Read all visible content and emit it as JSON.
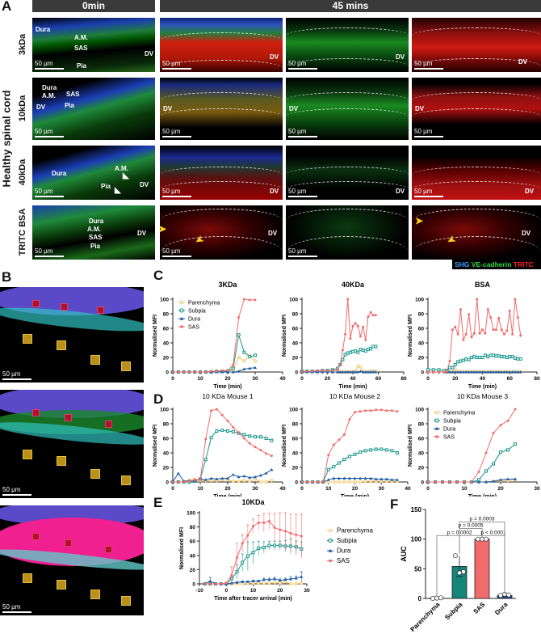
{
  "panel_labels": {
    "a": "A",
    "b": "B",
    "c": "C",
    "d": "D",
    "e": "E",
    "f": "F"
  },
  "panel_a": {
    "headers": {
      "t0": "0min",
      "t45": "45 mins"
    },
    "side_label": "Healthy spinal cord",
    "rows": [
      "3kDa",
      "10kDa",
      "40kDa",
      "TRITC BSA"
    ],
    "scale_bar": "50 µm",
    "anat": {
      "dura": "Dura",
      "am": "A.M.",
      "sas": "SAS",
      "pia": "Pia",
      "dv": "DV"
    },
    "legend": {
      "shg": "SHG",
      "ve": "VE-cadherin",
      "tritc": "TRITC"
    },
    "legend_colors": {
      "shg": "#3aa0ff",
      "ve": "#33dd44",
      "tritc": "#ff2020"
    }
  },
  "panel_b": {
    "scale_bar": "50 µm"
  },
  "series_colors": {
    "Parenchyma": "#f5c66a",
    "Subpia": "#15968a",
    "Dura": "#1d5aa6",
    "SAS": "#f26b6b"
  },
  "chart_data": [
    {
      "id": "c1",
      "type": "line",
      "title": "3KDa",
      "xlabel": "Time (min)",
      "ylabel": "Normalised MFI",
      "xlim": [
        0,
        40
      ],
      "ylim": [
        0,
        100
      ],
      "xticks": [
        0,
        10,
        20,
        30,
        40
      ],
      "yticks": [
        0,
        20,
        40,
        60,
        80,
        100
      ],
      "legend": "top-left",
      "x": [
        0,
        2,
        4,
        6,
        8,
        10,
        12,
        14,
        16,
        18,
        20,
        22,
        24,
        26,
        28,
        30
      ],
      "series": [
        {
          "name": "Parenchyma",
          "values": [
            0,
            0,
            0,
            0,
            0,
            0,
            0,
            1,
            1,
            1,
            2,
            2,
            20,
            15,
            23,
            15
          ]
        },
        {
          "name": "Subpia",
          "values": [
            0,
            0,
            0,
            0,
            0,
            0,
            0,
            0,
            1,
            1,
            1,
            5,
            51,
            27,
            21,
            23
          ]
        },
        {
          "name": "Dura",
          "values": [
            0,
            0,
            0,
            0,
            0,
            0,
            0,
            0,
            0,
            0,
            0,
            0,
            1,
            4,
            5,
            6
          ]
        },
        {
          "name": "SAS",
          "values": [
            0,
            0,
            0,
            0,
            0,
            0,
            0,
            1,
            1,
            2,
            2,
            10,
            75,
            100,
            99,
            99
          ]
        }
      ]
    },
    {
      "id": "c2",
      "type": "line",
      "title": "40KDa",
      "xlabel": "Time (min)",
      "ylabel": "Normalised MFI",
      "xlim": [
        0,
        80
      ],
      "ylim": [
        0,
        100
      ],
      "xticks": [
        0,
        20,
        40,
        60,
        80
      ],
      "yticks": [
        0,
        20,
        40,
        60,
        80,
        100
      ],
      "x": [
        0,
        4,
        8,
        12,
        16,
        20,
        24,
        28,
        30,
        32,
        34,
        36,
        38,
        40,
        42,
        44,
        46,
        48,
        50,
        52,
        54,
        56,
        58
      ],
      "series": [
        {
          "name": "Parenchyma",
          "values": [
            0,
            0,
            0,
            0,
            0,
            0,
            0,
            0,
            0,
            0,
            0,
            0,
            0,
            0,
            1,
            8,
            7,
            1,
            0,
            0,
            1,
            1,
            1
          ]
        },
        {
          "name": "Subpia",
          "values": [
            1,
            1,
            1,
            1,
            2,
            2,
            3,
            5,
            10,
            17,
            24,
            26,
            27,
            28,
            29,
            27,
            31,
            30,
            29,
            31,
            32,
            35,
            35
          ]
        },
        {
          "name": "Dura",
          "values": [
            0,
            0,
            0,
            0,
            0,
            0,
            0,
            0,
            0,
            0,
            0,
            0,
            0,
            0,
            0,
            0,
            1,
            0,
            0,
            0,
            0,
            0,
            0
          ]
        },
        {
          "name": "SAS",
          "values": [
            1,
            1,
            1,
            2,
            2,
            2,
            2,
            3,
            10,
            30,
            52,
            100,
            46,
            63,
            67,
            63,
            49,
            62,
            44,
            76,
            82,
            78,
            78
          ]
        }
      ]
    },
    {
      "id": "c3",
      "type": "line",
      "title": "BSA",
      "xlabel": "Time (min)",
      "ylabel": "Normalised MFI",
      "xlim": [
        0,
        80
      ],
      "ylim": [
        0,
        100
      ],
      "xticks": [
        0,
        20,
        40,
        60,
        80
      ],
      "yticks": [
        0,
        20,
        40,
        60,
        80,
        100
      ],
      "x": [
        0,
        4,
        8,
        12,
        14,
        16,
        18,
        20,
        22,
        24,
        26,
        28,
        30,
        32,
        34,
        36,
        38,
        40,
        42,
        44,
        46,
        48,
        50,
        52,
        54,
        56,
        58,
        60,
        62,
        64,
        66,
        68
      ],
      "series": [
        {
          "name": "Parenchyma",
          "values": [
            0,
            0,
            0,
            0,
            0,
            0,
            0,
            4,
            0,
            0,
            0,
            0,
            0,
            0,
            0,
            0,
            0,
            0,
            0,
            0,
            0,
            0,
            0,
            0,
            0,
            0,
            0,
            0,
            0,
            0,
            0,
            0
          ]
        },
        {
          "name": "Subpia",
          "values": [
            3,
            3,
            3,
            2,
            2,
            6,
            6,
            10,
            14,
            15,
            16,
            18,
            17,
            20,
            21,
            20,
            20,
            20,
            23,
            21,
            23,
            23,
            22,
            22,
            21,
            21,
            20,
            21,
            21,
            19,
            18,
            18
          ]
        },
        {
          "name": "Dura",
          "values": [
            0,
            0,
            0,
            0,
            0,
            0,
            0,
            0,
            0,
            0,
            0,
            0,
            0,
            0,
            0,
            0,
            0,
            0,
            0,
            0,
            0,
            0,
            0,
            0,
            0,
            0,
            0,
            0,
            0,
            0,
            0,
            0
          ]
        },
        {
          "name": "SAS",
          "values": [
            0,
            0,
            0,
            0,
            1,
            15,
            58,
            62,
            52,
            86,
            44,
            52,
            79,
            48,
            53,
            100,
            53,
            58,
            53,
            86,
            75,
            58,
            58,
            74,
            58,
            52,
            57,
            84,
            52,
            100,
            75,
            50
          ]
        }
      ]
    },
    {
      "id": "d1",
      "type": "line",
      "title": "10 KDa Mouse 1",
      "xlabel": "Time (min)",
      "ylabel": "Normalised MFI",
      "xlim": [
        0,
        40
      ],
      "ylim": [
        0,
        100
      ],
      "xticks": [
        0,
        10,
        20,
        30,
        40
      ],
      "yticks": [
        0,
        20,
        40,
        60,
        80,
        100
      ],
      "x": [
        0,
        2,
        4,
        6,
        8,
        10,
        12,
        14,
        16,
        18,
        20,
        22,
        24,
        26,
        28,
        30,
        32,
        34,
        36
      ],
      "series": [
        {
          "name": "Parenchyma",
          "values": [
            0,
            0,
            0,
            2,
            4,
            2,
            2,
            2,
            2,
            3,
            3,
            1,
            1,
            2,
            1,
            4,
            0,
            0,
            2
          ]
        },
        {
          "name": "Subpia",
          "values": [
            0,
            0,
            0,
            0,
            1,
            4,
            31,
            61,
            70,
            71,
            70,
            69,
            67,
            65,
            63,
            62,
            62,
            60,
            57
          ]
        },
        {
          "name": "Dura",
          "values": [
            0,
            12,
            1,
            2,
            2,
            4,
            3,
            5,
            4,
            5,
            5,
            10,
            7,
            8,
            6,
            7,
            9,
            12,
            17
          ]
        },
        {
          "name": "SAS",
          "values": [
            0,
            0,
            0,
            1,
            3,
            3,
            59,
            98,
            100,
            92,
            84,
            75,
            68,
            60,
            53,
            48,
            44,
            39,
            36
          ]
        }
      ]
    },
    {
      "id": "d2",
      "type": "line",
      "title": "10 KDa Mouse 2",
      "xlabel": "Time (min)",
      "ylabel": "Normalised MFI",
      "xlim": [
        0,
        40
      ],
      "ylim": [
        0,
        100
      ],
      "xticks": [
        0,
        10,
        20,
        30,
        40
      ],
      "yticks": [
        0,
        20,
        40,
        60,
        80,
        100
      ],
      "x": [
        0,
        2,
        4,
        6,
        8,
        10,
        12,
        14,
        16,
        18,
        20,
        22,
        24,
        26,
        28,
        30,
        32,
        34,
        36
      ],
      "series": [
        {
          "name": "Parenchyma",
          "values": [
            0,
            0,
            0,
            0,
            0,
            0,
            0,
            0,
            0,
            0,
            0,
            0,
            1,
            1,
            1,
            1,
            1,
            1,
            1
          ]
        },
        {
          "name": "Subpia",
          "values": [
            0,
            0,
            0,
            0,
            0,
            17,
            21,
            26,
            31,
            35,
            38,
            41,
            43,
            44,
            45,
            45,
            44,
            43,
            40
          ]
        },
        {
          "name": "Dura",
          "values": [
            0,
            0,
            0,
            0,
            0,
            3,
            5,
            5,
            5,
            5,
            5,
            5,
            5,
            5,
            4,
            4,
            4,
            3,
            3
          ]
        },
        {
          "name": "SAS",
          "values": [
            0,
            0,
            0,
            0,
            0,
            37,
            51,
            58,
            65,
            86,
            96,
            97,
            98,
            98,
            99,
            99,
            98,
            98,
            97
          ]
        }
      ]
    },
    {
      "id": "d3",
      "type": "line",
      "title": "10 KDa Mouse 3",
      "xlabel": "Time (min)",
      "ylabel": "Normalised MFI",
      "xlim": [
        0,
        30
      ],
      "ylim": [
        0,
        100
      ],
      "xticks": [
        0,
        10,
        20,
        30
      ],
      "yticks": [
        0,
        20,
        40,
        60,
        80,
        100
      ],
      "legend": "top-left",
      "x": [
        0,
        2,
        4,
        6,
        8,
        10,
        12,
        14,
        16,
        18,
        20,
        22,
        24
      ],
      "series": [
        {
          "name": "Parenchyma",
          "values": [
            0,
            0,
            0,
            0,
            0,
            0,
            0,
            0,
            0,
            1,
            2,
            2,
            3
          ]
        },
        {
          "name": "Subpia",
          "values": [
            0,
            0,
            0,
            0,
            0,
            0,
            0,
            3,
            15,
            25,
            41,
            44,
            52
          ]
        },
        {
          "name": "Dura",
          "values": [
            0,
            0,
            0,
            0,
            0,
            0,
            0,
            0,
            0,
            1,
            3,
            4,
            4
          ]
        },
        {
          "name": "SAS",
          "values": [
            0,
            0,
            0,
            0,
            0,
            0,
            0,
            14,
            40,
            67,
            78,
            84,
            100
          ]
        }
      ]
    },
    {
      "id": "e1",
      "type": "line",
      "title": "10KDa",
      "xlabel": "Time after tracer arrival (min)",
      "ylabel": "Normalised MFI",
      "xlim": [
        -10,
        30
      ],
      "ylim": [
        0,
        100
      ],
      "xticks": [
        -10,
        0,
        10,
        20,
        30
      ],
      "yticks": [
        0,
        20,
        40,
        60,
        80,
        100
      ],
      "legend": "right",
      "x": [
        -8,
        -6,
        -4,
        -2,
        0,
        2,
        4,
        6,
        8,
        10,
        12,
        14,
        16,
        18,
        20,
        22,
        24,
        26,
        28
      ],
      "series": [
        {
          "name": "Parenchyma",
          "values": [
            0,
            0,
            0,
            0,
            1,
            0,
            0,
            0,
            1,
            1,
            1,
            1,
            1,
            2,
            1,
            3,
            0,
            0,
            1
          ]
        },
        {
          "name": "Subpia",
          "values": [
            0,
            0,
            0,
            0,
            0,
            7,
            17,
            30,
            39,
            44,
            50,
            51,
            54,
            54,
            54,
            53,
            53,
            52,
            49
          ],
          "err": [
            0,
            0,
            0,
            0,
            1,
            4,
            10,
            12,
            20,
            15,
            10,
            8,
            6,
            6,
            6,
            8,
            10,
            8,
            10
          ]
        },
        {
          "name": "Dura",
          "values": [
            0,
            4,
            0,
            0,
            0,
            1,
            2,
            3,
            3,
            4,
            4,
            6,
            6,
            7,
            5,
            6,
            7,
            8,
            10
          ],
          "err": [
            0,
            5,
            0,
            0,
            0,
            1,
            1,
            1,
            1,
            1,
            1,
            2,
            2,
            2,
            2,
            2,
            3,
            3,
            7
          ]
        },
        {
          "name": "SAS",
          "values": [
            0,
            0,
            0,
            0,
            1,
            12,
            37,
            57,
            68,
            81,
            86,
            86,
            88,
            79,
            76,
            74,
            71,
            69,
            67
          ],
          "err": [
            0,
            0,
            0,
            0,
            1,
            12,
            20,
            12,
            15,
            10,
            10,
            13,
            11,
            20,
            24,
            26,
            27,
            29,
            31
          ]
        }
      ]
    },
    {
      "id": "f1",
      "type": "bar",
      "ylabel": "AUC",
      "ylim": [
        0,
        150
      ],
      "yticks": [
        0,
        50,
        100,
        150
      ],
      "categories": [
        "Parenchyma",
        "Subpia",
        "SAS",
        "Dura"
      ],
      "values": [
        0.5,
        54,
        100,
        5
      ],
      "errors": [
        0.5,
        17,
        0,
        1.5
      ],
      "points": [
        [
          0,
          0.5,
          1
        ],
        [
          72,
          43,
          45
        ],
        [
          100,
          100,
          100
        ],
        [
          5,
          7,
          6
        ]
      ],
      "bar_colors": [
        "#ffffff",
        "#15857a",
        "#f26b6b",
        "#1d4a8a"
      ],
      "comparisons": [
        {
          "a": "Parenchyma",
          "b": "SAS",
          "p": "p = 0.0002"
        },
        {
          "a": "Subpia",
          "b": "SAS",
          "p": "p = 0.0005"
        },
        {
          "a": "SAS",
          "b": "Dura",
          "p": "p < 0.0001"
        },
        {
          "a": "Subpia",
          "b": "Dura",
          "p": "p = 0.0003"
        }
      ]
    }
  ]
}
